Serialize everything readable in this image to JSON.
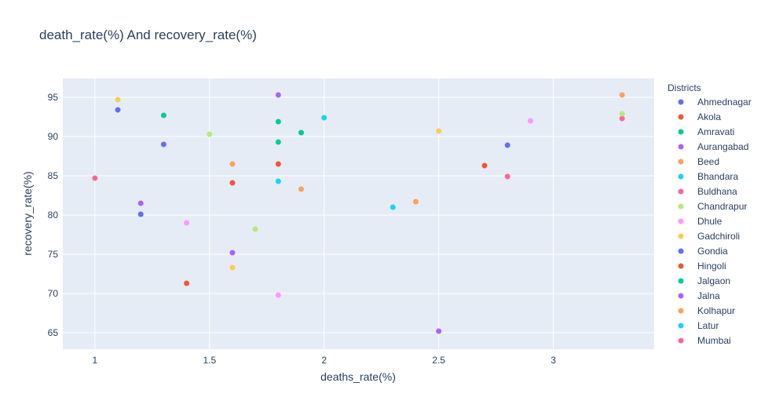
{
  "chart_data": {
    "type": "scatter",
    "title": "death_rate(%) And recovery_rate(%)",
    "xlabel": "deaths_rate(%)",
    "ylabel": "recovery_rate(%)",
    "xlim": [
      0.86,
      3.44
    ],
    "ylim": [
      62.9,
      97.4
    ],
    "xticks": [
      1,
      1.5,
      2,
      2.5,
      3
    ],
    "xtick_labels": [
      "1",
      "1.5",
      "2",
      "2.5",
      "3"
    ],
    "yticks": [
      65,
      70,
      75,
      80,
      85,
      90,
      95
    ],
    "ytick_labels": [
      "65",
      "70",
      "75",
      "80",
      "85",
      "90",
      "95"
    ],
    "grid": true,
    "legend_title": "Districts",
    "legend_position": "right",
    "series": [
      {
        "name": "Ahmednagar",
        "color": "#636efa",
        "points": [
          [
            1.1,
            93.4
          ],
          [
            1.3,
            89.0
          ],
          [
            1.2,
            80.1
          ],
          [
            2.8,
            88.9
          ]
        ]
      },
      {
        "name": "Akola",
        "color": "#EF553B",
        "points": [
          [
            1.8,
            86.5
          ],
          [
            1.6,
            84.1
          ],
          [
            1.4,
            71.3
          ],
          [
            2.7,
            86.3
          ]
        ]
      },
      {
        "name": "Amravati",
        "color": "#00cc96",
        "points": [
          [
            1.3,
            92.7
          ],
          [
            1.8,
            91.9
          ],
          [
            1.8,
            89.3
          ],
          [
            1.9,
            90.5
          ]
        ]
      },
      {
        "name": "Aurangabad",
        "color": "#ab63fa",
        "points": [
          [
            1.8,
            95.3
          ],
          [
            1.2,
            81.5
          ],
          [
            1.6,
            75.2
          ],
          [
            2.5,
            65.2
          ]
        ]
      },
      {
        "name": "Beed",
        "color": "#FFA15A",
        "points": [
          [
            1.6,
            86.5
          ],
          [
            1.9,
            83.3
          ],
          [
            2.4,
            81.7
          ],
          [
            3.3,
            95.3
          ]
        ]
      },
      {
        "name": "Bhandara",
        "color": "#19d3f3",
        "points": [
          [
            2.0,
            92.4
          ],
          [
            1.8,
            84.3
          ],
          [
            2.3,
            81.0
          ]
        ]
      },
      {
        "name": "Buldhana",
        "color": "#FF6692",
        "points": [
          [
            1.0,
            84.7
          ],
          [
            2.8,
            84.9
          ],
          [
            3.3,
            92.3
          ]
        ]
      },
      {
        "name": "Chandrapur",
        "color": "#B6E880",
        "points": [
          [
            1.5,
            90.3
          ],
          [
            1.7,
            78.2
          ],
          [
            3.3,
            92.9
          ]
        ]
      },
      {
        "name": "Dhule",
        "color": "#FF97FF",
        "points": [
          [
            1.4,
            79.0
          ],
          [
            1.8,
            69.8
          ],
          [
            2.9,
            92.0
          ]
        ]
      },
      {
        "name": "Gadchiroli",
        "color": "#FECB52",
        "points": [
          [
            1.1,
            94.7
          ],
          [
            1.6,
            73.3
          ],
          [
            2.5,
            90.7
          ]
        ]
      },
      {
        "name": "Gondia",
        "color": "#636efa",
        "points": []
      },
      {
        "name": "Hingoli",
        "color": "#EF553B",
        "points": []
      },
      {
        "name": "Jalgaon",
        "color": "#00cc96",
        "points": []
      },
      {
        "name": "Jalna",
        "color": "#ab63fa",
        "points": []
      },
      {
        "name": "Kolhapur",
        "color": "#FFA15A",
        "points": []
      },
      {
        "name": "Latur",
        "color": "#19d3f3",
        "points": []
      },
      {
        "name": "Mumbai",
        "color": "#FF6692",
        "points": []
      }
    ]
  }
}
